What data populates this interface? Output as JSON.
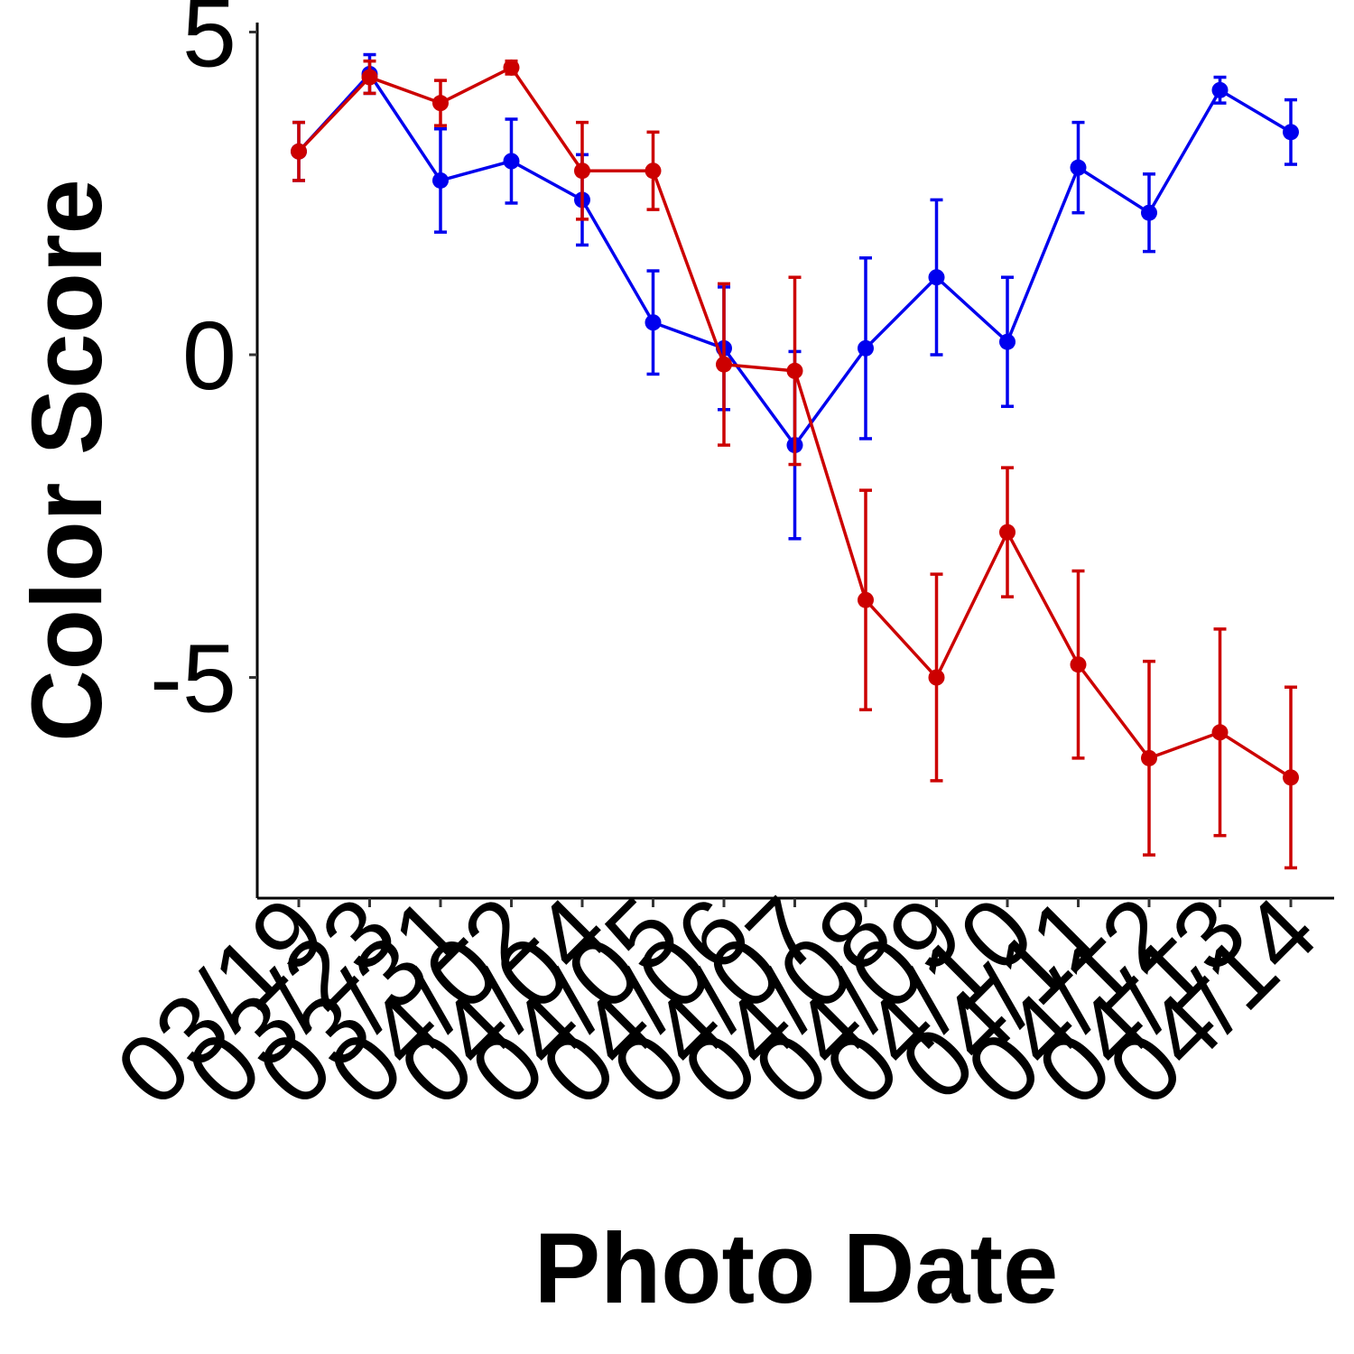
{
  "chart_data": {
    "type": "line",
    "xlabel": "Photo Date",
    "ylabel": "Color Score",
    "ylim": [
      -8.5,
      5.3
    ],
    "yticks": [
      5,
      0,
      -5
    ],
    "categories": [
      "03/19",
      "03/23",
      "03/31",
      "04/02",
      "04/04",
      "04/05",
      "04/06",
      "04/07",
      "04/08",
      "04/09",
      "04/10",
      "04/11",
      "04/12",
      "04/13",
      "04/14"
    ],
    "series": [
      {
        "color": "#0000ee",
        "values": [
          3.15,
          4.35,
          2.7,
          3.0,
          2.4,
          0.5,
          0.1,
          -1.4,
          0.1,
          1.2,
          0.2,
          2.9,
          2.2,
          4.1,
          3.45
        ],
        "errors": [
          0.45,
          0.3,
          0.8,
          0.65,
          0.7,
          0.8,
          0.95,
          1.45,
          1.4,
          1.2,
          1.0,
          0.7,
          0.6,
          0.2,
          0.5
        ]
      },
      {
        "color": "#cc0000",
        "values": [
          3.15,
          4.3,
          3.9,
          4.45,
          2.85,
          2.85,
          -0.15,
          -0.25,
          -3.8,
          -5.0,
          -2.75,
          -4.8,
          -6.25,
          -5.85,
          -6.55
        ],
        "errors": [
          0.45,
          0.25,
          0.35,
          0.1,
          0.75,
          0.6,
          1.25,
          1.45,
          1.7,
          1.6,
          1.0,
          1.45,
          1.5,
          1.6,
          1.4
        ]
      }
    ],
    "grid": false,
    "legend": "none"
  }
}
